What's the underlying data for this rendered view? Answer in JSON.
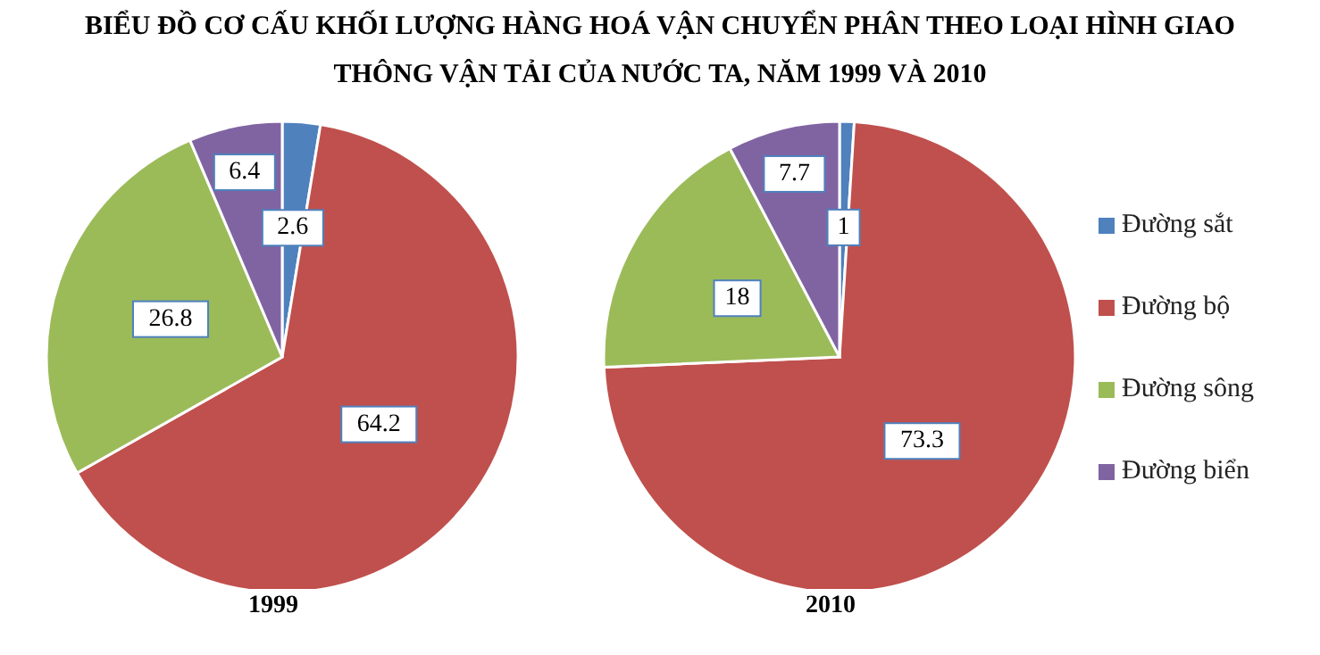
{
  "chart_data": [
    {
      "type": "pie",
      "title": "BIỂU ĐỒ CƠ CẤU KHỐI LƯỢNG HÀNG HOÁ VẬN CHUYỂN PHÂN THEO LOẠI HÌNH GIAO THÔNG VẬN TẢI CỦA NƯỚC TA, NĂM 1999 VÀ 2010",
      "xlabel": "1999",
      "categories": [
        null,
        null,
        null,
        null
      ],
      "values": [
        2.6,
        64.2,
        26.8,
        6.4
      ],
      "colors": [
        "#4f81bd",
        "#c0504d",
        "#9bbb59",
        "#8064a2"
      ],
      "data_labels": true,
      "legend": false
    },
    {
      "type": "pie",
      "xlabel": "2010",
      "categories": [
        "Đường sắt",
        "Đường bộ",
        "Đường sông",
        "Đường biển"
      ],
      "values": [
        1,
        73.3,
        18,
        7.7
      ],
      "colors": [
        "#4f81bd",
        "#c0504d",
        "#9bbb59",
        "#8064a2"
      ],
      "data_labels": true,
      "legend": "right"
    }
  ]
}
